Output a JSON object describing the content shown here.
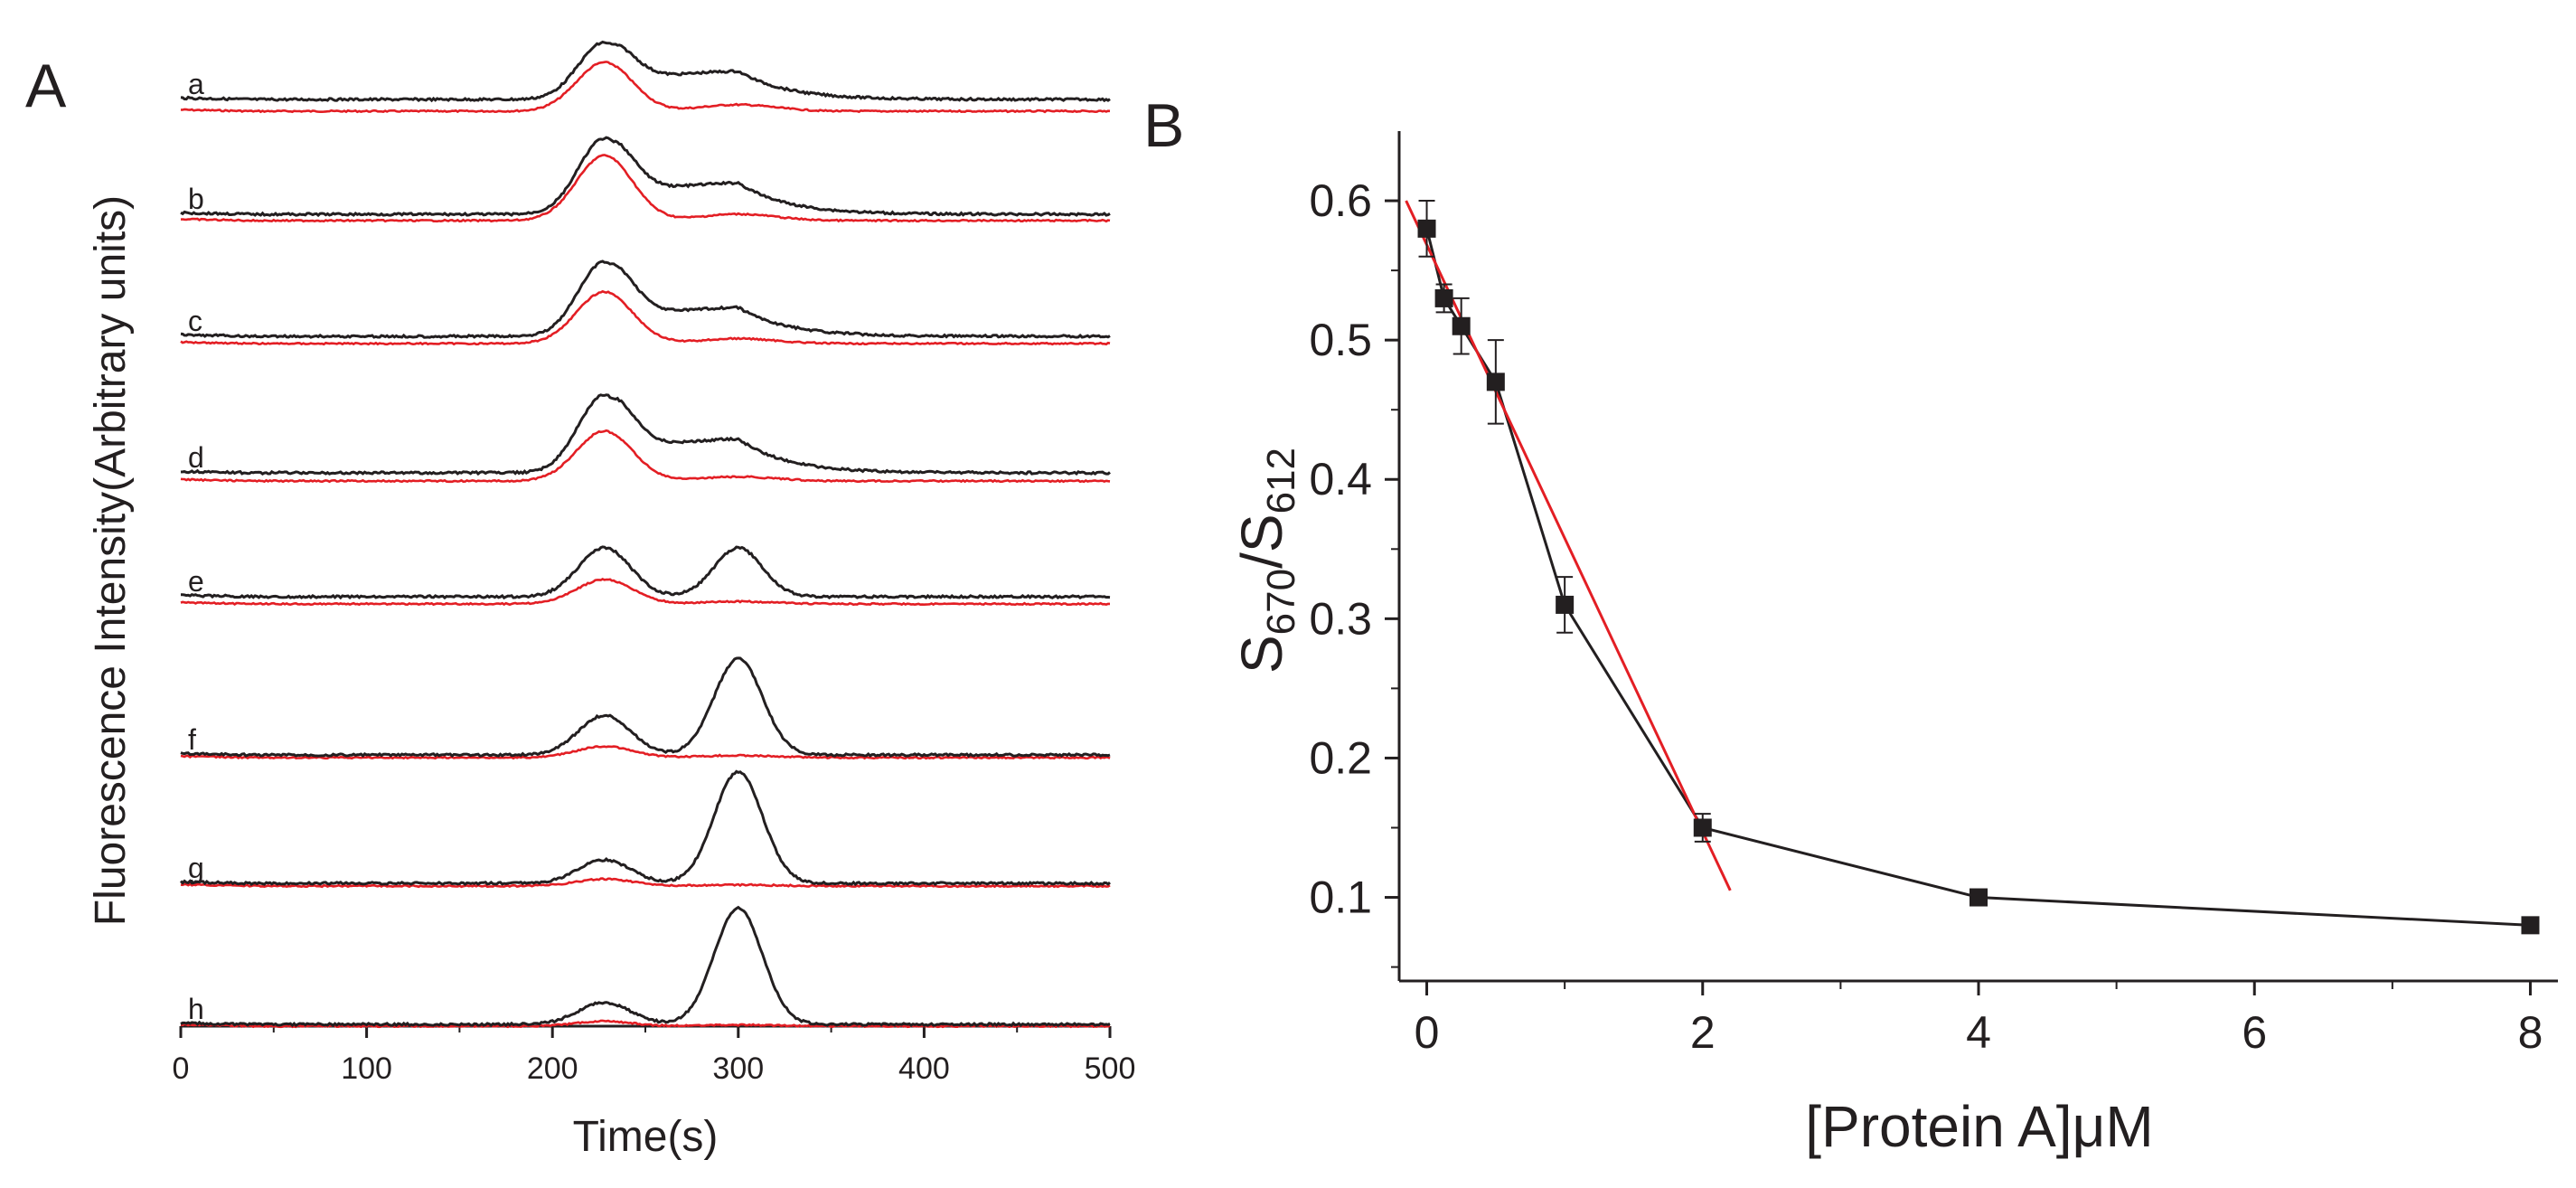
{
  "chart_data": [
    {
      "panel": "A",
      "type": "line",
      "xlabel": "Time(s)",
      "ylabel": "Fluorescence Intensity(Arbitrary units)",
      "xlim": [
        0,
        500
      ],
      "xticks": [
        0,
        100,
        200,
        300,
        400,
        500
      ],
      "traces": [
        {
          "label": "a",
          "black": {
            "p1": 0.7,
            "p2": 0.48,
            "shoulder": true
          },
          "red": {
            "p1": 0.6,
            "p2": 0.08
          }
        },
        {
          "label": "b",
          "black": {
            "p1": 0.7,
            "p2": 0.4,
            "shoulder": true
          },
          "red": {
            "p1": 0.6,
            "p2": 0.06
          }
        },
        {
          "label": "c",
          "black": {
            "p1": 0.75,
            "p2": 0.4,
            "shoulder": true
          },
          "red": {
            "p1": 0.52,
            "p2": 0.05
          }
        },
        {
          "label": "d",
          "black": {
            "p1": 0.75,
            "p2": 0.45,
            "shoulder": true
          },
          "red": {
            "p1": 0.48,
            "p2": 0.04
          }
        },
        {
          "label": "e",
          "black": {
            "p1": 0.6,
            "p2": 0.6,
            "shoulder": false
          },
          "red": {
            "p1": 0.3,
            "p2": 0.03
          }
        },
        {
          "label": "f",
          "black": {
            "p1": 0.35,
            "p2": 0.85,
            "shoulder": false
          },
          "red": {
            "p1": 0.1,
            "p2": 0.02
          }
        },
        {
          "label": "g",
          "black": {
            "p1": 0.2,
            "p2": 0.95,
            "shoulder": false
          },
          "red": {
            "p1": 0.06,
            "p2": 0.01
          }
        },
        {
          "label": "h",
          "black": {
            "p1": 0.18,
            "p2": 0.95,
            "shoulder": false
          },
          "red": {
            "p1": 0.04,
            "p2": 0.01
          }
        }
      ],
      "series_colors": {
        "black": "#231f20",
        "red": "#e31e24"
      }
    },
    {
      "panel": "B",
      "type": "scatter",
      "xlabel": "[Protein A]μM",
      "ylabel_main": "S",
      "ylabel_sub1": "670",
      "ylabel_sep": "/S",
      "ylabel_sub2": "612",
      "xlim": [
        -0.2,
        8.2
      ],
      "ylim": [
        0.04,
        0.65
      ],
      "xticks": [
        0,
        2,
        4,
        6,
        8
      ],
      "yticks": [
        0.1,
        0.2,
        0.3,
        0.4,
        0.5,
        0.6
      ],
      "ytick_labels": [
        "0.1",
        "0.2",
        "0.3",
        "0.4",
        "0.5",
        "0.6"
      ],
      "xtick_labels": [
        "0",
        "2",
        "4",
        "6",
        "8"
      ],
      "x": [
        0,
        0.125,
        0.25,
        0.5,
        1,
        2,
        4,
        8
      ],
      "y": [
        0.58,
        0.53,
        0.51,
        0.47,
        0.31,
        0.15,
        0.1,
        0.08
      ],
      "yerr": [
        0.02,
        0.01,
        0.02,
        0.03,
        0.02,
        0.01,
        0.003,
        0.003
      ],
      "fit_line": {
        "x": [
          -0.15,
          2.2
        ],
        "y": [
          0.6,
          0.105
        ]
      },
      "colors": {
        "points": "#231f20",
        "fit": "#e31e24"
      }
    }
  ]
}
